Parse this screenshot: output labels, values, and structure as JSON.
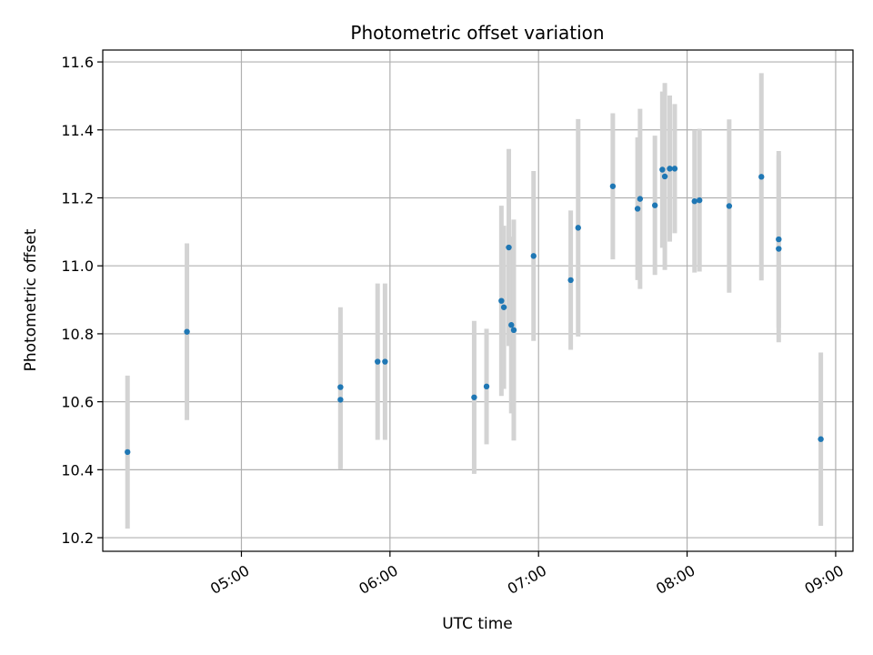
{
  "chart_data": {
    "type": "scatter",
    "title": "Photometric offset variation",
    "xlabel": "UTC time",
    "ylabel": "Photometric offset",
    "x_ticks": [
      "05:00",
      "06:00",
      "07:00",
      "08:00",
      "09:00"
    ],
    "y_ticks": [
      "10.2",
      "10.4",
      "10.6",
      "10.8",
      "11.0",
      "11.2",
      "11.4",
      "11.6"
    ],
    "xlim": [
      "04:04",
      "09:07"
    ],
    "ylim": [
      10.16,
      11.635
    ],
    "grid": true,
    "marker_color": "#1f77b4",
    "errorbar_color": "#d3d3d3",
    "points": [
      {
        "x": "04:14",
        "y": 10.452,
        "yerr": 0.225
      },
      {
        "x": "04:38",
        "y": 10.806,
        "yerr": 0.26
      },
      {
        "x": "05:40",
        "y": 10.643,
        "yerr": 0.235
      },
      {
        "x": "05:40",
        "y": 10.606,
        "yerr": 0.205
      },
      {
        "x": "05:55",
        "y": 10.718,
        "yerr": 0.23
      },
      {
        "x": "05:58",
        "y": 10.718,
        "yerr": 0.23
      },
      {
        "x": "06:34",
        "y": 10.613,
        "yerr": 0.225
      },
      {
        "x": "06:39",
        "y": 10.645,
        "yerr": 0.17
      },
      {
        "x": "06:45",
        "y": 10.897,
        "yerr": 0.28
      },
      {
        "x": "06:46",
        "y": 10.878,
        "yerr": 0.24
      },
      {
        "x": "06:48",
        "y": 11.054,
        "yerr": 0.29
      },
      {
        "x": "06:49",
        "y": 10.826,
        "yerr": 0.26
      },
      {
        "x": "06:50",
        "y": 10.811,
        "yerr": 0.325
      },
      {
        "x": "06:58",
        "y": 11.029,
        "yerr": 0.25
      },
      {
        "x": "07:13",
        "y": 10.958,
        "yerr": 0.205
      },
      {
        "x": "07:16",
        "y": 11.112,
        "yerr": 0.32
      },
      {
        "x": "07:30",
        "y": 11.234,
        "yerr": 0.215
      },
      {
        "x": "07:40",
        "y": 11.168,
        "yerr": 0.21
      },
      {
        "x": "07:41",
        "y": 11.197,
        "yerr": 0.265
      },
      {
        "x": "07:47",
        "y": 11.178,
        "yerr": 0.205
      },
      {
        "x": "07:50",
        "y": 11.283,
        "yerr": 0.23
      },
      {
        "x": "07:51",
        "y": 11.263,
        "yerr": 0.275
      },
      {
        "x": "07:53",
        "y": 11.286,
        "yerr": 0.215
      },
      {
        "x": "07:55",
        "y": 11.286,
        "yerr": 0.19
      },
      {
        "x": "08:03",
        "y": 11.19,
        "yerr": 0.21
      },
      {
        "x": "08:05",
        "y": 11.193,
        "yerr": 0.21
      },
      {
        "x": "08:17",
        "y": 11.176,
        "yerr": 0.255
      },
      {
        "x": "08:30",
        "y": 11.262,
        "yerr": 0.305
      },
      {
        "x": "08:37",
        "y": 11.078,
        "yerr": 0.26
      },
      {
        "x": "08:37",
        "y": 11.05,
        "yerr": 0.275
      },
      {
        "x": "08:54",
        "y": 10.49,
        "yerr": 0.255
      }
    ]
  }
}
